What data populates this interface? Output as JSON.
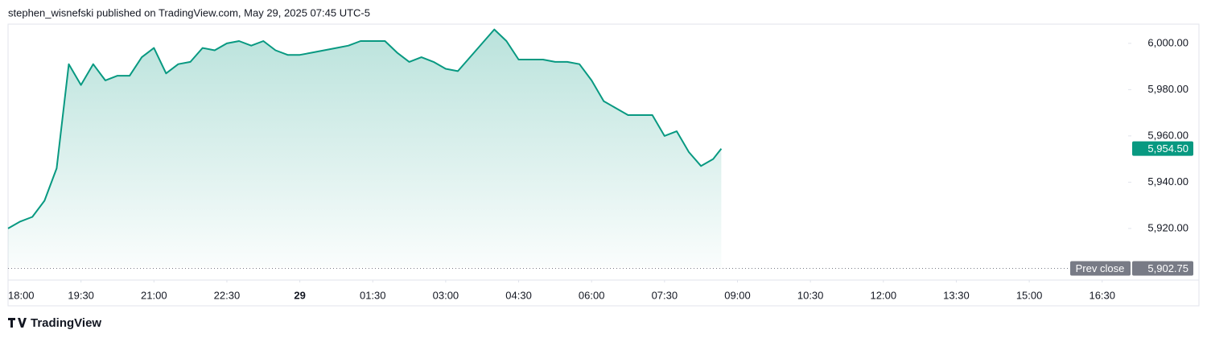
{
  "header": "stephen_wisnefski published on TradingView.com, May 29, 2025 07:45 UTC-5",
  "footer": "TradingView",
  "chart_data": {
    "type": "line",
    "x": [
      "18:00",
      "18:15",
      "18:30",
      "18:45",
      "19:00",
      "19:15",
      "19:30",
      "19:45",
      "20:00",
      "20:15",
      "20:30",
      "20:45",
      "21:00",
      "21:15",
      "21:30",
      "21:45",
      "22:00",
      "22:15",
      "22:30",
      "22:45",
      "23:00",
      "23:15",
      "23:30",
      "23:45",
      "00:00",
      "00:15",
      "00:30",
      "00:45",
      "01:00",
      "01:15",
      "01:30",
      "01:45",
      "02:00",
      "02:15",
      "02:30",
      "02:45",
      "03:00",
      "03:15",
      "03:30",
      "03:45",
      "04:00",
      "04:15",
      "04:30",
      "04:45",
      "05:00",
      "05:15",
      "05:30",
      "05:45",
      "06:00",
      "06:15",
      "06:30",
      "06:45",
      "07:00",
      "07:15",
      "07:30",
      "07:45",
      "08:00",
      "08:15",
      "08:30",
      "08:40"
    ],
    "series": [
      {
        "color": "#089981",
        "values": [
          5920,
          5923,
          5925,
          5932,
          5946,
          5991,
          5982,
          5991,
          5984,
          5986,
          5986,
          5994,
          5998,
          5987,
          5991,
          5992,
          5998,
          5997,
          6000,
          6001,
          5999,
          6001,
          5997,
          5995,
          5995,
          5996,
          5997,
          5998,
          5999,
          6001,
          6001,
          6001,
          5996,
          5992,
          5994,
          5992,
          5989,
          5988,
          5994,
          6000,
          6006,
          6001,
          5993,
          5993,
          5993,
          5992,
          5992,
          5991,
          5984,
          5975,
          5972,
          5969,
          5969,
          5969,
          5960,
          5962,
          5953,
          5947,
          5950,
          5954.5
        ]
      }
    ],
    "xlim": [
      "18:00",
      "17:05"
    ],
    "xticks": [
      "18:00",
      "19:30",
      "21:00",
      "22:30",
      {
        "value": "00:00",
        "label": "29"
      },
      "01:30",
      "03:00",
      "04:30",
      "06:00",
      "07:30",
      "09:00",
      "10:30",
      "12:00",
      "13:30",
      "15:00",
      "16:30"
    ],
    "ylim": [
      5897.7,
      6008.3
    ],
    "yticks": [
      {
        "value": 5920,
        "label": "5,920.00"
      },
      {
        "value": 5940,
        "label": "5,940.00"
      },
      {
        "value": 5960,
        "label": "5,960.00"
      },
      {
        "value": 5980,
        "label": "5,980.00"
      },
      {
        "value": 6000,
        "label": "6,000.00"
      }
    ],
    "last_price": {
      "value": 5954.5,
      "label": "5,954.50"
    },
    "prev_close": {
      "name": "Prev close",
      "value": 5902.75,
      "label": "5,902.75"
    }
  }
}
